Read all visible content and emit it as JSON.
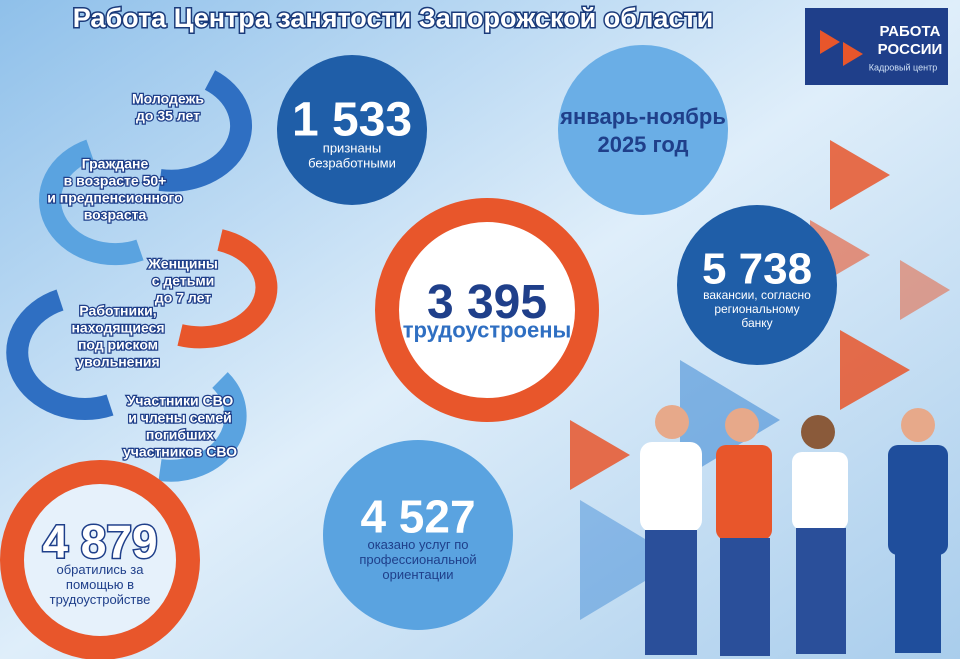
{
  "header": {
    "title": "Работа Центра занятости Запорожской области"
  },
  "logo": {
    "line1": "РАБОТА",
    "line2": "РОССИИ",
    "tagline": "Кадровый центр"
  },
  "period": [
    "январь-ноябрь",
    "2025 год"
  ],
  "stats": [
    {
      "number": "1 533",
      "label": [
        "признаны",
        "безработными"
      ]
    },
    {
      "number": "3 395",
      "label": [
        "трудоустроены"
      ]
    },
    {
      "number": "5 738",
      "label": [
        "вакансии, согласно",
        "региональному",
        "банку"
      ]
    },
    {
      "number": "4 527",
      "label": [
        "оказано услуг по",
        "профессиональной",
        "ориентации"
      ]
    },
    {
      "number": "4 879",
      "label": [
        "обратились за",
        "помощью в",
        "трудоустройстве"
      ]
    }
  ],
  "groups": [
    [
      "Молодежь",
      "до 35 лет"
    ],
    [
      "Граждане",
      "в возрасте 50+",
      "и предпенсионного",
      "возраста"
    ],
    [
      "Женщины",
      "с детьми",
      "до 7 лет"
    ],
    [
      "Работники,",
      "находящиеся",
      "под риском",
      "увольнения"
    ],
    [
      "Участники СВО",
      "и члены семей",
      "погибших",
      "участников СВО"
    ]
  ]
}
